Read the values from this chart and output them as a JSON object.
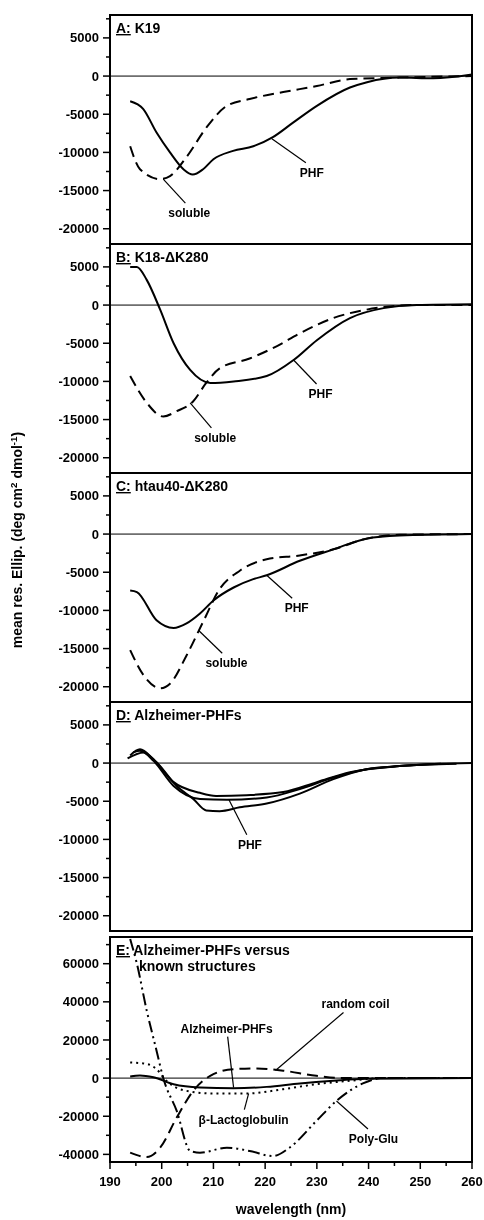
{
  "chart_data": [
    {
      "type": "line",
      "title": "A: K19",
      "xlim": [
        190,
        260
      ],
      "ylim": [
        -22000,
        8000
      ],
      "tick_labels": "y",
      "yticks": [
        {
          "value": 7500,
          "label": null
        },
        5000,
        {
          "value": 2500,
          "label": null
        },
        0,
        {
          "value": -2500,
          "label": null
        },
        -5000,
        {
          "value": -7500,
          "label": null
        },
        -10000,
        {
          "value": -12500,
          "label": null
        },
        -15000,
        {
          "value": -17500,
          "label": null
        },
        -20000
      ],
      "ref_lines": [
        {
          "axis": "y",
          "value": 0
        }
      ],
      "series": [
        {
          "color": "#000000",
          "line_style": "solid",
          "x": [
            193.9,
            196.4,
            199,
            201.6,
            204.2,
            206,
            208,
            210,
            213.8,
            217.7,
            221.5,
            225.4,
            230,
            236.4,
            239.7,
            246,
            252.5,
            260
          ],
          "values": [
            -3300,
            -4300,
            -7400,
            -10000,
            -12200,
            -12900,
            -12200,
            -10900,
            -9800,
            -9200,
            -8000,
            -6100,
            -3900,
            -1500,
            -800,
            -200,
            -300,
            200
          ]
        },
        {
          "color": "#000000",
          "line_style": "dashed",
          "x": [
            193.9,
            195.8,
            199.7,
            201.6,
            204.9,
            208.8,
            212.6,
            217,
            223.5,
            230,
            236.4,
            246,
            260
          ],
          "values": [
            -9200,
            -12200,
            -13500,
            -13100,
            -10500,
            -6600,
            -3900,
            -3000,
            -2100,
            -1300,
            -400,
            -200,
            0
          ]
        }
      ],
      "annotations": [
        {
          "text": "soluble",
          "x": 200.3,
          "y": -13500
        },
        {
          "text": "PHF",
          "x": 221.3,
          "y": -8200
        }
      ]
    },
    {
      "type": "line",
      "title": "B: K18-ΔK280",
      "xlim": [
        190,
        260
      ],
      "ylim": [
        -22000,
        8000
      ],
      "tick_labels": "y",
      "yticks": [
        {
          "value": 7500,
          "label": null
        },
        5000,
        {
          "value": 2500,
          "label": null
        },
        0,
        {
          "value": -2500,
          "label": null
        },
        -5000,
        {
          "value": -7500,
          "label": null
        },
        -10000,
        {
          "value": -12500,
          "label": null
        },
        -15000,
        {
          "value": -17500,
          "label": null
        },
        -20000
      ],
      "ref_lines": [
        {
          "axis": "y",
          "value": 0
        }
      ],
      "series": [
        {
          "color": "#000000",
          "line_style": "solid",
          "x": [
            193.9,
            195.2,
            197.1,
            199.7,
            202.3,
            205.5,
            209.4,
            213.9,
            220.3,
            225.5,
            230,
            236.4,
            242.9,
            249.3,
            260
          ],
          "values": [
            5000,
            5000,
            3300,
            -600,
            -5000,
            -8500,
            -10200,
            -10000,
            -9300,
            -7200,
            -4600,
            -1700,
            -400,
            0,
            100
          ]
        },
        {
          "color": "#000000",
          "line_style": "dashed",
          "x": [
            193.9,
            197.1,
            200.3,
            202.9,
            206.1,
            208.6,
            211.2,
            217,
            222.2,
            226.7,
            233.2,
            239.6,
            249.3,
            260
          ],
          "values": [
            -9300,
            -12800,
            -14600,
            -13900,
            -12600,
            -10200,
            -8300,
            -7000,
            -5400,
            -3700,
            -1700,
            -600,
            0,
            0
          ]
        }
      ],
      "annotations": [
        {
          "text": "soluble",
          "x": 205.5,
          "y": -12800
        },
        {
          "text": "PHF",
          "x": 225.5,
          "y": -7200
        }
      ]
    },
    {
      "type": "line",
      "title": "C: htau40-ΔK280",
      "ylabel": "mean res. Ellip. (deg cm$^{2}$ dmol$^{-1}$)",
      "xlim": [
        190,
        260
      ],
      "ylim": [
        -22000,
        8000
      ],
      "tick_labels": "y",
      "yticks": [
        {
          "value": 7500,
          "label": null
        },
        5000,
        {
          "value": 2500,
          "label": null
        },
        0,
        {
          "value": -2500,
          "label": null
        },
        -5000,
        {
          "value": -7500,
          "label": null
        },
        -10000,
        {
          "value": -12500,
          "label": null
        },
        -15000,
        {
          "value": -17500,
          "label": null
        },
        -20000
      ],
      "ref_lines": [
        {
          "axis": "y",
          "value": 0
        }
      ],
      "series": [
        {
          "color": "#000000",
          "line_style": "solid",
          "x": [
            193.9,
            195.2,
            199,
            202.3,
            204.8,
            207.4,
            210,
            213.9,
            217.7,
            220.3,
            226.7,
            233.2,
            239.6,
            246,
            260
          ],
          "values": [
            -7400,
            -7600,
            -11300,
            -12300,
            -11700,
            -10400,
            -8700,
            -7000,
            -5900,
            -5400,
            -3500,
            -2000,
            -600,
            -200,
            0
          ]
        },
        {
          "color": "#000000",
          "line_style": "dashed",
          "x": [
            193.9,
            196.5,
            199.7,
            201.6,
            204.8,
            208,
            211.2,
            215.1,
            220.3,
            226.7,
            233.2,
            239.6,
            246,
            260
          ],
          "values": [
            -15200,
            -18500,
            -20200,
            -19600,
            -15900,
            -11500,
            -7200,
            -4800,
            -3300,
            -2800,
            -2000,
            -600,
            -100,
            0
          ]
        }
      ],
      "annotations": [
        {
          "text": "soluble",
          "x": 207.1,
          "y": -12600
        },
        {
          "text": "PHF",
          "x": 220.3,
          "y": -5400
        }
      ]
    },
    {
      "type": "line",
      "title": "D: Alzheimer-PHFs",
      "xlim": [
        190,
        260
      ],
      "ylim": [
        -22000,
        8000
      ],
      "tick_labels": "y",
      "yticks": [
        {
          "value": 7500,
          "label": null
        },
        5000,
        {
          "value": 2500,
          "label": null
        },
        0,
        {
          "value": -2500,
          "label": null
        },
        -5000,
        {
          "value": -7500,
          "label": null
        },
        -10000,
        {
          "value": -12500,
          "label": null
        },
        -15000,
        {
          "value": -17500,
          "label": null
        },
        -20000
      ],
      "ref_lines": [
        {
          "axis": "y",
          "value": 0
        }
      ],
      "series": [
        {
          "color": "#000000",
          "line_style": "solid",
          "x": [
            193.9,
            195.8,
            198.4,
            202.3,
            207.4,
            210.5,
            216.4,
            223.5,
            230,
            236.4,
            246,
            260
          ],
          "values": [
            1000,
            1800,
            500,
            -2500,
            -3900,
            -4300,
            -4200,
            -3800,
            -2500,
            -1200,
            -400,
            0
          ]
        },
        {
          "color": "#000000",
          "line_style": "solid",
          "x": [
            194.5,
            195.8,
            198.4,
            202.3,
            207.4,
            212.6,
            220.3,
            226.7,
            233.2,
            239.6,
            246,
            257
          ],
          "values": [
            1400,
            1600,
            300,
            -3000,
            -4700,
            -4800,
            -4500,
            -3400,
            -1900,
            -800,
            -400,
            -100
          ]
        },
        {
          "color": "#000000",
          "line_style": "solid",
          "x": [
            193.4,
            196.5,
            199,
            202.9,
            206.1,
            208.6,
            211.2,
            215.1,
            220.3,
            226.7,
            233.2,
            239.6,
            246,
            254
          ],
          "values": [
            600,
            1400,
            100,
            -3000,
            -4700,
            -6200,
            -6300,
            -5800,
            -5300,
            -4000,
            -2100,
            -800,
            -400,
            -100
          ]
        }
      ],
      "annotations": [
        {
          "text": "PHF",
          "x": 213,
          "y": -4800
        }
      ]
    },
    {
      "type": "line",
      "title": "E: Alzheimer-PHFs versus known structures",
      "xlabel": "wavelength (nm)",
      "xlim": [
        190,
        260
      ],
      "ylim": [
        -44000,
        74000
      ],
      "xticks": [
        190,
        {
          "value": 195,
          "label": null
        },
        200,
        {
          "value": 205,
          "label": null
        },
        210,
        {
          "value": 215,
          "label": null
        },
        220,
        {
          "value": 225,
          "label": null
        },
        230,
        {
          "value": 235,
          "label": null
        },
        240,
        {
          "value": 245,
          "label": null
        },
        250,
        {
          "value": 255,
          "label": null
        },
        260
      ],
      "yticks": [
        {
          "value": 70000,
          "label": null
        },
        60000,
        {
          "value": 50000,
          "label": null
        },
        40000,
        {
          "value": 30000,
          "label": null
        },
        20000,
        {
          "value": 10000,
          "label": null
        },
        0,
        {
          "value": -10000,
          "label": null
        },
        -20000,
        {
          "value": -30000,
          "label": null
        },
        -40000
      ],
      "ref_lines": [
        {
          "axis": "y",
          "value": 0
        }
      ],
      "series": [
        {
          "color": "#000000",
          "line_style": "dashdot",
          "x": [
            193.9,
            195.2,
            197.1,
            199,
            200.3,
            202.9,
            205.5,
            207.4,
            212.6,
            217,
            221.5,
            224.7,
            229.9,
            233.8,
            238.9,
            242.7,
            260
          ],
          "values": [
            73000,
            60000,
            35400,
            14400,
            0,
            -17200,
            -38200,
            -39100,
            -36500,
            -38200,
            -40900,
            -36500,
            -22500,
            -11900,
            -2800,
            0,
            0
          ]
        },
        {
          "color": "#000000",
          "line_style": "dashed",
          "x": [
            193.9,
            197.1,
            199.7,
            202.9,
            206.1,
            210,
            213.9,
            218.4,
            223.5,
            229.9,
            235.1,
            260
          ],
          "values": [
            -39100,
            -41400,
            -36500,
            -20700,
            -6700,
            2100,
            4700,
            5100,
            3900,
            1200,
            0,
            0
          ]
        },
        {
          "color": "#000000",
          "line_style": "dotted",
          "x": [
            193.9,
            197.1,
            199,
            200.9,
            204.8,
            210,
            216.4,
            223.5,
            229.9,
            236.4,
            242.7,
            260
          ],
          "values": [
            8200,
            7400,
            4700,
            -1400,
            -6700,
            -8100,
            -8100,
            -5800,
            -3200,
            -1400,
            0,
            0
          ]
        },
        {
          "color": "#000000",
          "line_style": "solid",
          "x": [
            193.9,
            195.8,
            198.4,
            202.3,
            207.4,
            213.9,
            220.3,
            226.7,
            233.2,
            239.6,
            260
          ],
          "values": [
            900,
            1400,
            400,
            -3200,
            -4900,
            -5300,
            -4600,
            -2800,
            -1400,
            -400,
            0
          ]
        }
      ],
      "annotations": [
        {
          "text": "random coil",
          "x": 222,
          "y": 4000
        },
        {
          "text": "Alzheimer-PHFs",
          "x": 213.9,
          "y": -5000
        },
        {
          "text": "β-Lactoglobulin",
          "x": 216.8,
          "y": -8100
        },
        {
          "text": "Poly-Glu",
          "x": 233.8,
          "y": -12000
        }
      ]
    }
  ]
}
